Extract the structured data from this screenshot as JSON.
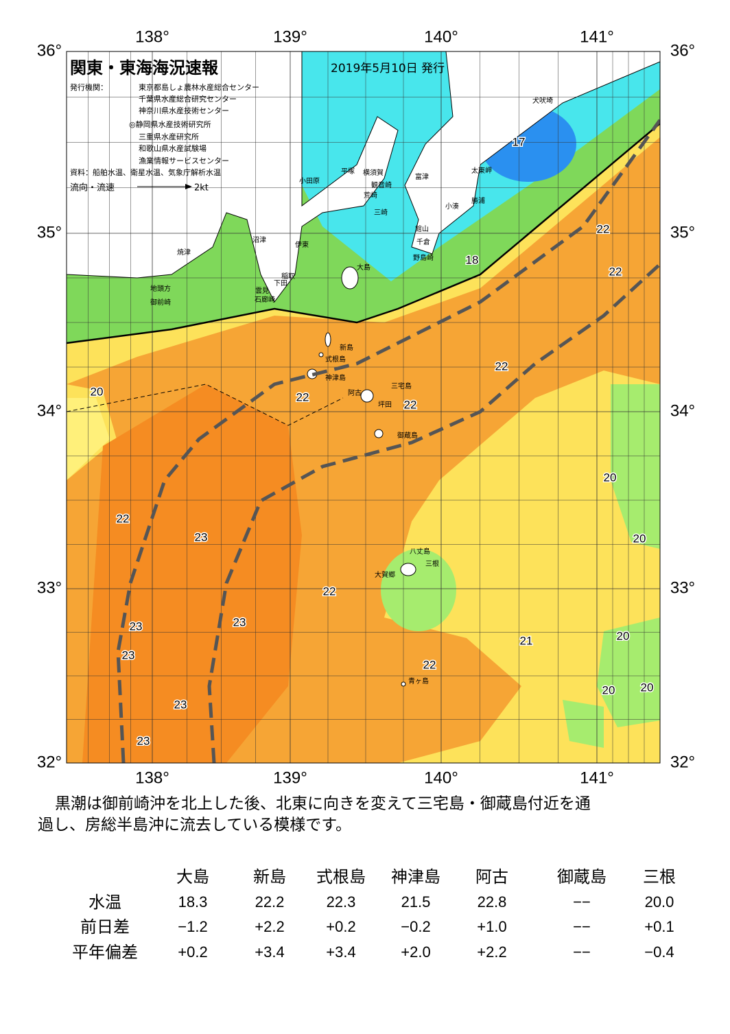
{
  "header": {
    "title": "関東・東海海況速報",
    "date": "2019年5月10日 発行",
    "issuer_label": "発行機関：",
    "issuers": [
      "東京都島しょ農林水産総合センター",
      "千葉県水産総合研究センター",
      "神奈川県水産技術センター",
      "◎静岡県水産技術研究所",
      "三重県水産研究所",
      "和歌山県水産試験場",
      "漁業情報サービスセンター"
    ],
    "sources": "資料：船舶水温、衛星水温、気象庁解析水温",
    "flow_label": "流向・流速",
    "flow_unit": "2kt"
  },
  "map": {
    "longitude_labels": [
      "138°",
      "139°",
      "140°",
      "141°"
    ],
    "latitude_labels": [
      "36°",
      "35°",
      "34°",
      "33°",
      "32°"
    ],
    "places": [
      "犬吠埼",
      "太東岬",
      "富津",
      "平塚",
      "横須賀",
      "観音崎",
      "荒崎",
      "小田原",
      "勝浦",
      "小湊",
      "三崎",
      "館山",
      "千倉",
      "野島崎",
      "沼津",
      "伊東",
      "焼津",
      "大島",
      "稲取",
      "下田",
      "雲見",
      "石廊崎",
      "地頭方",
      "御前崎",
      "新島",
      "式根島",
      "神津島",
      "三宅島",
      "阿古",
      "坪田",
      "御蔵島",
      "八丈島",
      "三根",
      "大賀郷",
      "青ヶ島"
    ],
    "contour_labels": [
      "17",
      "18",
      "22",
      "22",
      "22",
      "20",
      "22",
      "22",
      "20",
      "22",
      "23",
      "20",
      "22",
      "23",
      "23",
      "21",
      "20",
      "23",
      "22",
      "20",
      "20",
      "23",
      "23"
    ]
  },
  "text": [
    "黒潮は御前崎沖を北上した後、北東に向きを変えて三宅島・御蔵島付近を通",
    "過し、房総半島沖に流去している模様です。"
  ],
  "table": {
    "columns": [
      "大島",
      "新島",
      "式根島",
      "神津島",
      "阿古",
      "御蔵島",
      "三根"
    ],
    "rows": [
      [
        "水温",
        "18.3",
        "22.2",
        "22.3",
        "21.5",
        "22.8",
        "−−",
        "20.0"
      ],
      [
        "前日差",
        "−1.2",
        "+2.2",
        "+0.2",
        "−0.2",
        "+1.0",
        "−−",
        "+0.1"
      ],
      [
        "平年偏差",
        "+0.2",
        "+3.4",
        "+3.4",
        "+2.0",
        "+2.2",
        "−−",
        "−0.4"
      ]
    ]
  }
}
